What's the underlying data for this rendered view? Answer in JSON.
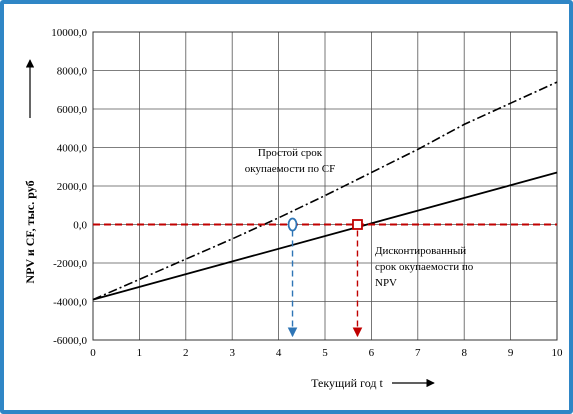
{
  "chart_data": {
    "type": "line",
    "xlabel": "Текущий год t",
    "ylabel": "NPV и CF, тыс. руб",
    "xlim": [
      0,
      10
    ],
    "ylim": [
      -6000,
      10000
    ],
    "x_ticks": [
      "0",
      "1",
      "2",
      "3",
      "4",
      "5",
      "6",
      "7",
      "8",
      "9",
      "10"
    ],
    "y_ticks": [
      "-6000,0",
      "-4000,0",
      "-2000,0",
      "0,0",
      "2000,0",
      "4000,0",
      "6000,0",
      "8000,0",
      "10000,0"
    ],
    "grid": true,
    "series": [
      {
        "style": "dash-dot",
        "color": "#000000",
        "x": [
          0,
          1,
          2,
          3,
          4,
          5,
          6,
          7,
          8,
          9,
          10
        ],
        "y": [
          -3900,
          -2850,
          -1800,
          -750,
          350,
          1500,
          2700,
          3900,
          5200,
          6300,
          7400
        ]
      },
      {
        "style": "solid",
        "color": "#000000",
        "x": [
          0,
          10
        ],
        "y": [
          -3900,
          2700
        ]
      },
      {
        "style": "dashed",
        "color": "#c00000",
        "x": [
          0,
          10
        ],
        "y": [
          0,
          0
        ]
      }
    ],
    "markers": [
      {
        "shape": "circle",
        "color": "#2e75b6",
        "x": 4.3,
        "y": 0
      },
      {
        "shape": "square",
        "color": "#c00000",
        "x": 5.7,
        "y": 0
      }
    ],
    "annotations": [
      {
        "lines": [
          "Простой срок",
          "окупаемости по CF"
        ],
        "x": 4.3,
        "arrow_to_y": -5800,
        "arrow_color": "#2e75b6"
      },
      {
        "lines": [
          "Дисконтированный",
          "срок окупаемости по",
          "NPV"
        ],
        "x": 5.7,
        "arrow_to_y": -5800,
        "arrow_color": "#c00000"
      }
    ]
  }
}
